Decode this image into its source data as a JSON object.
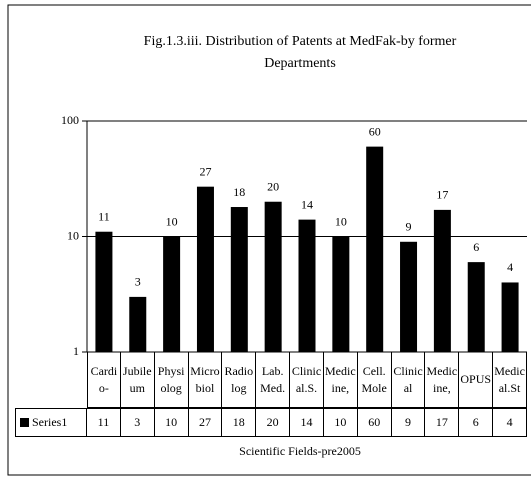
{
  "chart_data": {
    "type": "bar",
    "title": "Fig.1.3.iii. Distribution of Patents at MedFak-by former Departments",
    "x_label": "Scientific Fields-pre2005",
    "categories": [
      "Cardio-",
      "Jubileum",
      "Physiolog",
      "Microbiol",
      "Radiolog",
      "Lab. Med.",
      "Clinical.S.",
      "Medicine,",
      "Cell. Mole",
      "Clinical",
      "Medicine,",
      "OPUS",
      "Medical.St"
    ],
    "series": [
      {
        "name": "Series1",
        "color": "#000000",
        "values": [
          11,
          3,
          10,
          27,
          18,
          20,
          14,
          10,
          60,
          9,
          17,
          6,
          4
        ]
      }
    ],
    "yscale": "log",
    "ylim": [
      1,
      100
    ],
    "yticks": [
      1,
      10,
      100
    ],
    "grid": true,
    "data_table": true
  }
}
